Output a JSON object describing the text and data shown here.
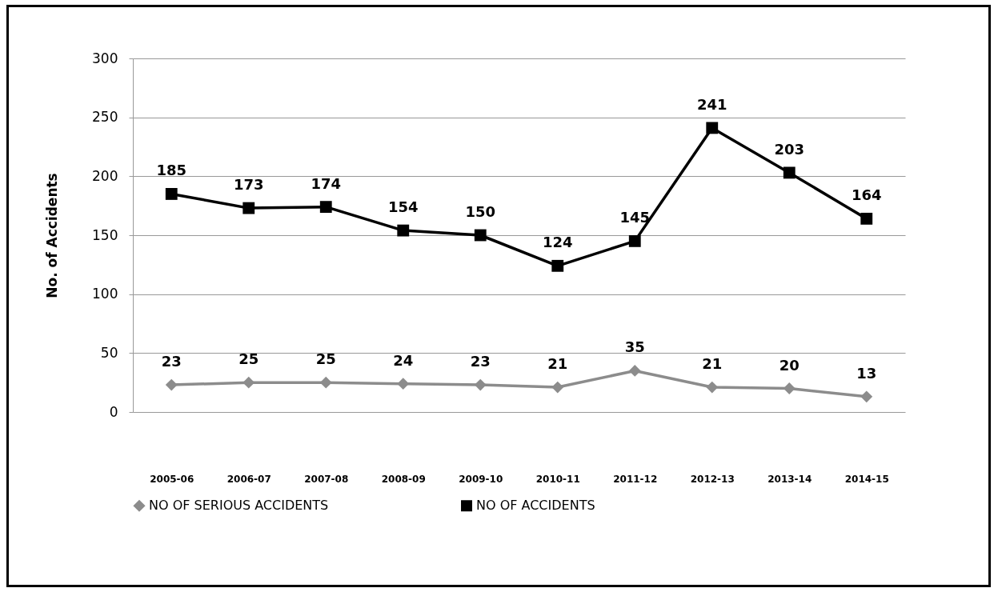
{
  "chart_data": {
    "type": "line",
    "ylabel": "No. of Accidents",
    "categories": [
      "2005-06",
      "2006-07",
      "2007-08",
      "2008-09",
      "2009-10",
      "2010-11",
      "2011-12",
      "2012-13",
      "2013-14",
      "2014-15"
    ],
    "series": [
      {
        "name": "NO OF SERIOUS ACCIDENTS",
        "color": "#8c8c8c",
        "marker": "diamond",
        "values": [
          23,
          25,
          25,
          24,
          23,
          21,
          35,
          21,
          20,
          13
        ]
      },
      {
        "name": "NO OF ACCIDENTS",
        "color": "#000000",
        "marker": "square",
        "values": [
          185,
          173,
          174,
          154,
          150,
          124,
          145,
          241,
          203,
          164
        ]
      }
    ],
    "ylim": [
      0,
      300
    ],
    "yticks": [
      0,
      50,
      100,
      150,
      200,
      250,
      300
    ],
    "grid": "y",
    "legend": "bottom",
    "data_labels": true,
    "line_style": "solid"
  }
}
